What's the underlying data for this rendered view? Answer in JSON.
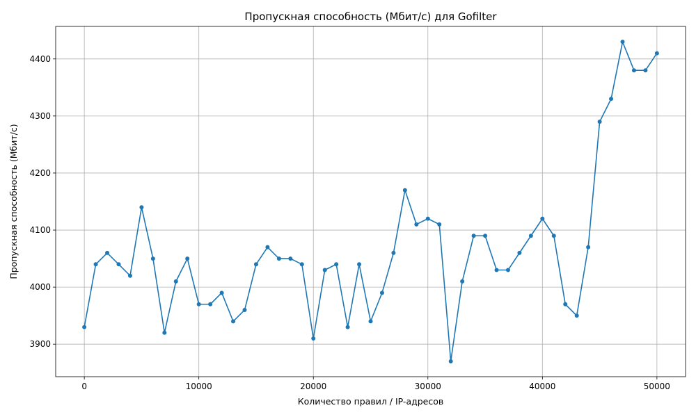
{
  "chart_data": {
    "type": "line",
    "title": "Пропускная способность (Мбит/с) для Gofilter",
    "xlabel": "Количество правил / IP-адресов",
    "ylabel": "Пропускная способность (Мбит/с)",
    "xlim": [
      -2500,
      52500
    ],
    "ylim": [
      3843,
      4457
    ],
    "xticks": [
      0,
      10000,
      20000,
      30000,
      40000,
      50000
    ],
    "xtick_labels": [
      "0",
      "10000",
      "20000",
      "30000",
      "40000",
      "50000"
    ],
    "yticks": [
      3900,
      4000,
      4100,
      4200,
      4300,
      4400
    ],
    "ytick_labels": [
      "3900",
      "4000",
      "4100",
      "4200",
      "4300",
      "4400"
    ],
    "grid": true,
    "line_color": "#1f77b4",
    "x": [
      0,
      1000,
      2000,
      3000,
      4000,
      5000,
      6000,
      7000,
      8000,
      9000,
      10000,
      11000,
      12000,
      13000,
      14000,
      15000,
      16000,
      17000,
      18000,
      19000,
      20000,
      21000,
      22000,
      23000,
      24000,
      25000,
      26000,
      27000,
      28000,
      29000,
      30000,
      31000,
      32000,
      33000,
      34000,
      35000,
      36000,
      37000,
      38000,
      39000,
      40000,
      41000,
      42000,
      43000,
      44000,
      45000,
      46000,
      47000,
      48000,
      49000,
      50000
    ],
    "series": [
      {
        "values": [
          3930,
          4040,
          4060,
          4040,
          4020,
          4140,
          4050,
          3920,
          4010,
          4050,
          3970,
          3970,
          3990,
          3940,
          3960,
          4040,
          4070,
          4050,
          4050,
          4040,
          3910,
          4030,
          4040,
          3930,
          4040,
          3940,
          3990,
          4060,
          4170,
          4110,
          4120,
          4110,
          3870,
          4010,
          4090,
          4090,
          4030,
          4030,
          4060,
          4090,
          4120,
          4090,
          3970,
          3950,
          4070,
          4290,
          4330,
          4430,
          4380,
          4380,
          4410
        ]
      }
    ]
  }
}
